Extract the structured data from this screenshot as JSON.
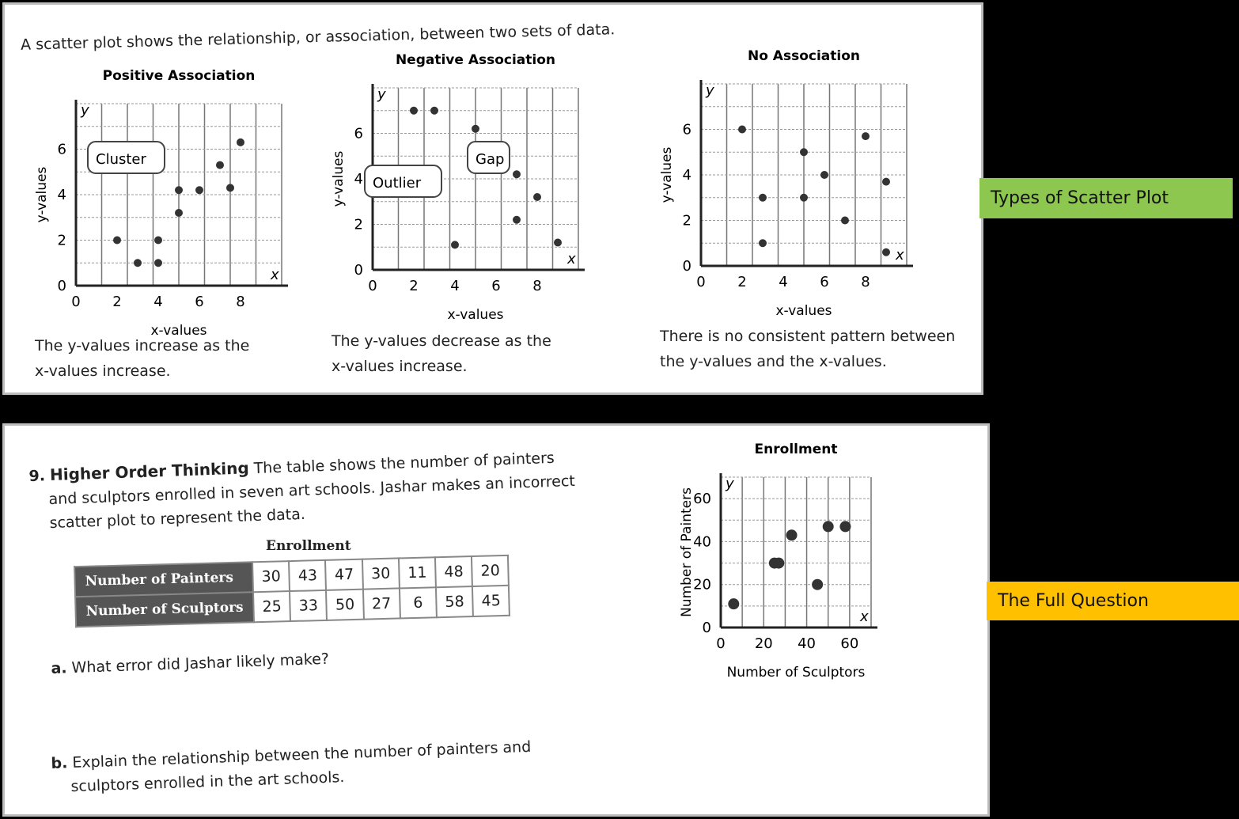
{
  "intro": "A scatter plot shows the relationship, or association, between two sets of data.",
  "labels": {
    "types": "Types of Scatter Plot",
    "full": "The Full Question"
  },
  "charts": [
    {
      "title": "Positive Association",
      "xlabel": "x-values",
      "ylabel": "y-values",
      "xticks": [
        "0",
        "2",
        "4",
        "6",
        "8"
      ],
      "yticks": [
        "0",
        "2",
        "4",
        "6"
      ],
      "x_axis": "x",
      "y_axis": "y",
      "callouts": [
        "Cluster"
      ],
      "caption": [
        "The y-values increase as the",
        "x-values increase."
      ],
      "points": [
        [
          2,
          2
        ],
        [
          3,
          1
        ],
        [
          4,
          1
        ],
        [
          4,
          2
        ],
        [
          5,
          3.2
        ],
        [
          5,
          4.2
        ],
        [
          6,
          4.2
        ],
        [
          7,
          5.3
        ],
        [
          7.5,
          4.3
        ],
        [
          8,
          6.3
        ]
      ]
    },
    {
      "title": "Negative Association",
      "xlabel": "x-values",
      "ylabel": "y-values",
      "xticks": [
        "0",
        "2",
        "4",
        "6",
        "8"
      ],
      "yticks": [
        "0",
        "2",
        "4",
        "6"
      ],
      "x_axis": "x",
      "y_axis": "y",
      "callouts": [
        "Outlier",
        "Gap"
      ],
      "caption": [
        "The y-values decrease as the",
        "x-values increase."
      ],
      "points": [
        [
          2,
          7
        ],
        [
          3,
          7
        ],
        [
          5,
          6.2
        ],
        [
          6,
          5.2
        ],
        [
          7,
          4.2
        ],
        [
          8,
          3.2
        ],
        [
          7,
          2.2
        ],
        [
          4,
          1.1
        ],
        [
          9,
          1.2
        ]
      ]
    },
    {
      "title": "No Association",
      "xlabel": "x-values",
      "ylabel": "y-values",
      "xticks": [
        "0",
        "2",
        "4",
        "6",
        "8"
      ],
      "yticks": [
        "0",
        "2",
        "4",
        "6"
      ],
      "x_axis": "x",
      "y_axis": "y",
      "callouts": [],
      "caption": [
        "There is no consistent pattern between",
        "the y-values and the x-values."
      ],
      "points": [
        [
          2,
          6
        ],
        [
          3,
          3
        ],
        [
          3,
          1
        ],
        [
          5,
          5
        ],
        [
          5,
          3
        ],
        [
          6,
          4
        ],
        [
          7,
          2
        ],
        [
          8,
          5.7
        ],
        [
          9,
          3.7
        ],
        [
          9,
          0.6
        ]
      ]
    }
  ],
  "question": {
    "number": "9.",
    "heading": "Higher Order Thinking",
    "lines": [
      "The table shows the number of painters",
      "and sculptors enrolled in seven art schools. Jashar makes an incorrect",
      "scatter plot to represent the data."
    ],
    "table_title": "Enrollment",
    "rows": [
      {
        "label": "Number of Painters",
        "values": [
          "30",
          "43",
          "47",
          "30",
          "11",
          "48",
          "20"
        ]
      },
      {
        "label": "Number of Sculptors",
        "values": [
          "25",
          "33",
          "50",
          "27",
          "6",
          "58",
          "45"
        ]
      }
    ],
    "a_label": "a.",
    "a": "What error did Jashar likely make?",
    "b_label": "b.",
    "b": [
      "Explain the relationship between the number of painters and",
      "sculptors enrolled in the art schools."
    ]
  },
  "chart_data": {
    "type": "scatter",
    "title": "Enrollment",
    "xlabel": "Number of Sculptors",
    "ylabel": "Number of Painters",
    "xlim": [
      0,
      70
    ],
    "ylim": [
      0,
      70
    ],
    "xticks": [
      "0",
      "20",
      "40",
      "60"
    ],
    "yticks": [
      "0",
      "20",
      "40",
      "60"
    ],
    "x_axis": "x",
    "y_axis": "y",
    "points": [
      [
        6,
        11
      ],
      [
        25,
        30
      ],
      [
        27,
        30
      ],
      [
        33,
        43
      ],
      [
        45,
        20
      ],
      [
        50,
        47
      ],
      [
        58,
        47
      ]
    ]
  }
}
